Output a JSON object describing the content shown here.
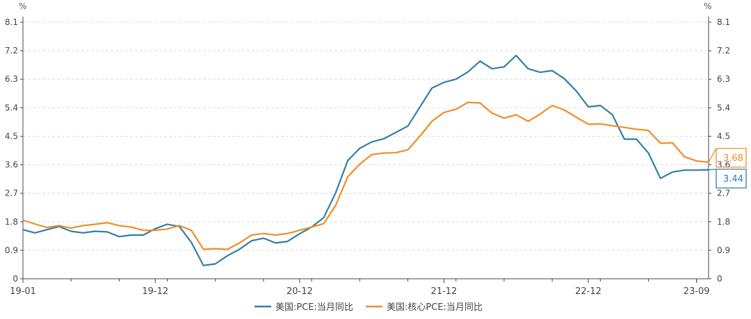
{
  "chart_data": {
    "type": "line",
    "unit_left": "%",
    "unit_right": "%",
    "yticks": [
      "0",
      "0.9",
      "1.8",
      "2.7",
      "3.6",
      "4.5",
      "5.4",
      "6.3",
      "7.2",
      "8.1"
    ],
    "ylim": [
      0,
      8.1
    ],
    "xticks": [
      "19-01",
      "19-12",
      "20-12",
      "21-12",
      "22-12",
      "23-09"
    ],
    "x_range": [
      "19-01",
      "23-09"
    ],
    "grid": "horizontal dashed",
    "legend_position": "bottom-center",
    "series": [
      {
        "name": "美国:PCE:当月同比",
        "color": "#2f7ea6",
        "last_label": "3.44",
        "values": [
          1.55,
          1.45,
          1.55,
          1.65,
          1.5,
          1.45,
          1.5,
          1.48,
          1.33,
          1.38,
          1.38,
          1.58,
          1.72,
          1.65,
          1.15,
          0.42,
          0.47,
          0.73,
          0.93,
          1.2,
          1.28,
          1.13,
          1.18,
          1.42,
          1.63,
          1.93,
          2.72,
          3.73,
          4.12,
          4.32,
          4.42,
          4.62,
          4.82,
          5.42,
          6.02,
          6.2,
          6.3,
          6.53,
          6.87,
          6.63,
          6.69,
          7.05,
          6.63,
          6.52,
          6.57,
          6.32,
          5.93,
          5.43,
          5.47,
          5.18,
          4.41,
          4.41,
          3.97,
          3.17,
          3.37,
          3.43,
          3.43,
          3.44
        ]
      },
      {
        "name": "美国:核心PCE:当月同比",
        "color": "#f28c28",
        "last_label": "3.68",
        "values": [
          1.85,
          1.73,
          1.62,
          1.68,
          1.6,
          1.68,
          1.72,
          1.77,
          1.68,
          1.63,
          1.53,
          1.53,
          1.57,
          1.68,
          1.53,
          0.93,
          0.95,
          0.93,
          1.13,
          1.38,
          1.43,
          1.38,
          1.43,
          1.53,
          1.63,
          1.74,
          2.32,
          3.22,
          3.62,
          3.92,
          3.97,
          3.98,
          4.07,
          4.5,
          4.97,
          5.25,
          5.35,
          5.57,
          5.55,
          5.23,
          5.07,
          5.18,
          4.97,
          5.2,
          5.47,
          5.33,
          5.1,
          4.88,
          4.89,
          4.83,
          4.78,
          4.72,
          4.68,
          4.28,
          4.29,
          3.85,
          3.72,
          3.68
        ]
      }
    ]
  }
}
